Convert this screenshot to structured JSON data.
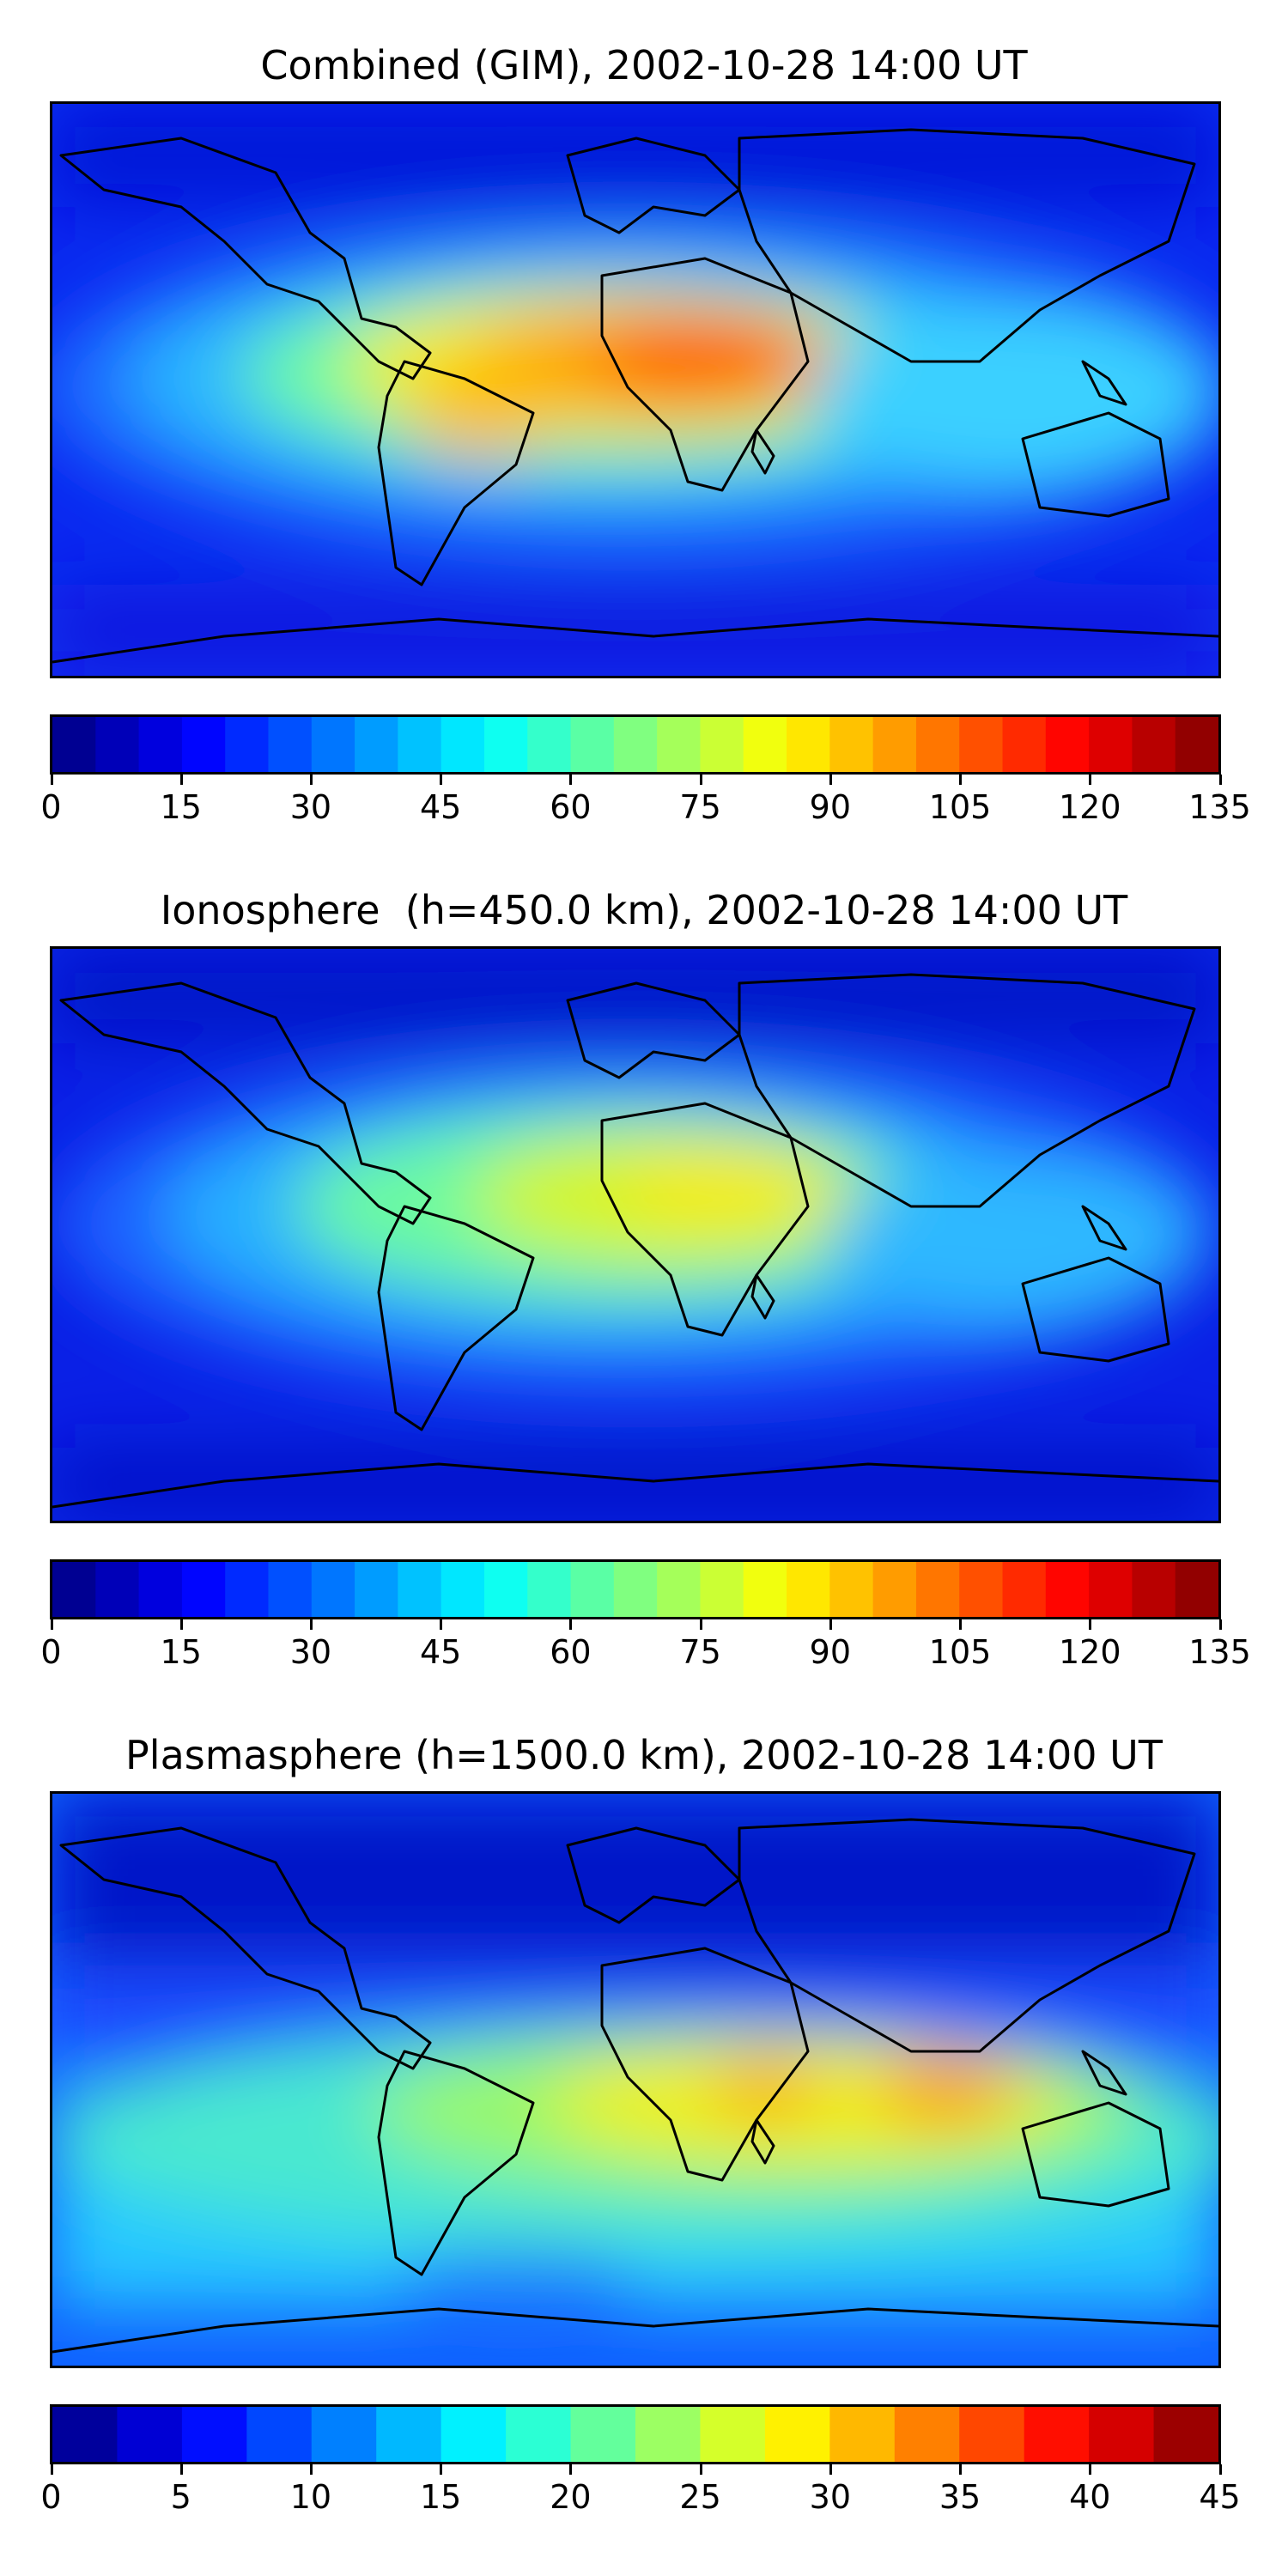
{
  "panels": [
    {
      "title": "Combined (GIM), 2002-10-28 14:00 UT",
      "colorbar": {
        "min": 0,
        "max": 135,
        "levels": 27,
        "ticks": [
          "0",
          "15",
          "30",
          "45",
          "60",
          "75",
          "90",
          "105",
          "120",
          "135"
        ]
      }
    },
    {
      "title": "Ionosphere  (h=450.0 km), 2002-10-28 14:00 UT",
      "colorbar": {
        "min": 0,
        "max": 135,
        "levels": 27,
        "ticks": [
          "0",
          "15",
          "30",
          "45",
          "60",
          "75",
          "90",
          "105",
          "120",
          "135"
        ]
      }
    },
    {
      "title": "Plasmasphere (h=1500.0 km), 2002-10-28 14:00 UT",
      "colorbar": {
        "min": 0,
        "max": 45,
        "levels": 18,
        "ticks": [
          "0",
          "5",
          "10",
          "15",
          "20",
          "25",
          "30",
          "35",
          "40",
          "45"
        ]
      }
    }
  ],
  "colormap": "jet"
}
